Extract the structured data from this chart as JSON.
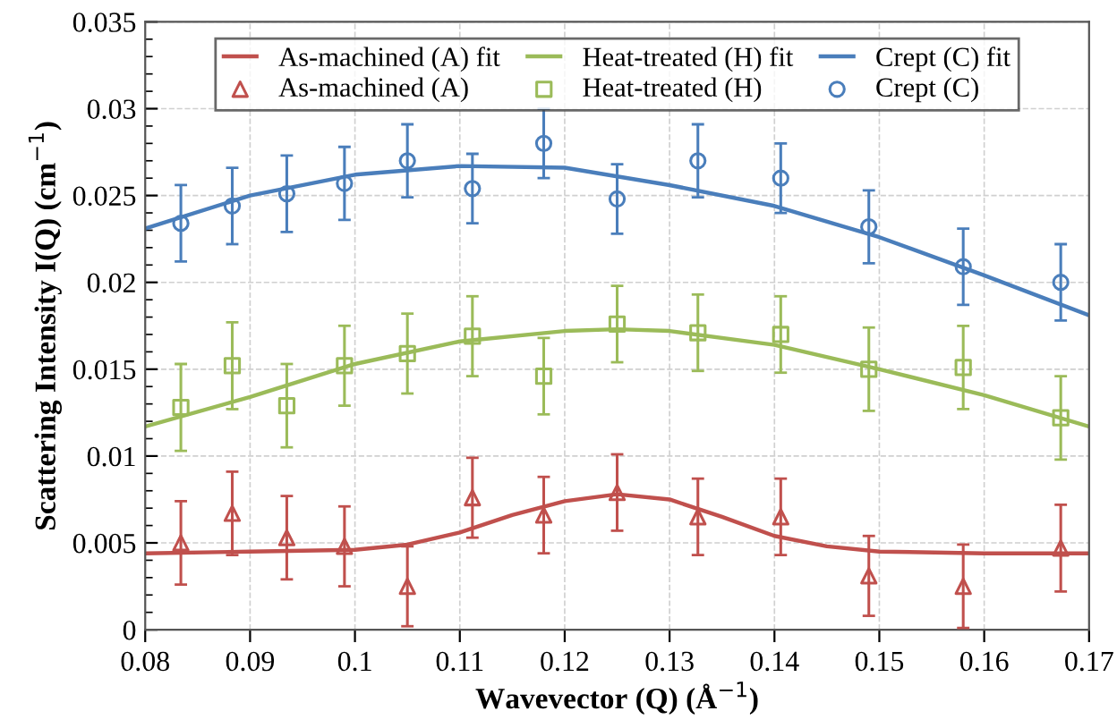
{
  "chart_data": {
    "type": "scatter",
    "xlabel": "Wavevector (Q) (Å$^{−1}$)",
    "ylabel": "Scattering Intensity I(Q) (cm$^{−1}$)",
    "xlim": [
      0.08,
      0.17
    ],
    "xticks": [
      0.08,
      0.09,
      0.1,
      0.11,
      0.12,
      0.13,
      0.14,
      0.15,
      0.16,
      0.17
    ],
    "ylim": [
      0,
      0.035
    ],
    "yticks": [
      0,
      0.005,
      0.01,
      0.015,
      0.02,
      0.025,
      0.03,
      0.035
    ],
    "grid": true,
    "legend": "top",
    "x": [
      0.0834,
      0.0883,
      0.0935,
      0.099,
      0.105,
      0.1112,
      0.118,
      0.125,
      0.1327,
      0.1406,
      0.149,
      0.158,
      0.1673
    ],
    "series": [
      {
        "name": "As-machined (A) fit",
        "type": "line",
        "marker": "none",
        "color": "#c0504d",
        "x": [
          0.08,
          0.09,
          0.1,
          0.105,
          0.11,
          0.115,
          0.12,
          0.125,
          0.13,
          0.135,
          0.14,
          0.145,
          0.15,
          0.16,
          0.17
        ],
        "values": [
          0.0044,
          0.0045,
          0.0046,
          0.0049,
          0.0056,
          0.0066,
          0.0074,
          0.0078,
          0.0075,
          0.0065,
          0.0054,
          0.0048,
          0.0045,
          0.0044,
          0.0044
        ]
      },
      {
        "name": "As-machined (A)",
        "marker": "triangle",
        "color": "#c0504d",
        "values": [
          0.005,
          0.0067,
          0.0053,
          0.0048,
          0.0025,
          0.0076,
          0.0066,
          0.0079,
          0.0065,
          0.0065,
          0.0031,
          0.0025,
          0.0047
        ],
        "errors": [
          0.0024,
          0.0024,
          0.0024,
          0.0023,
          0.0023,
          0.0023,
          0.0022,
          0.0022,
          0.0022,
          0.0022,
          0.0023,
          0.0024,
          0.0025
        ]
      },
      {
        "name": "Heat-treated (H) fit",
        "type": "line",
        "marker": "none",
        "color": "#9bbb59",
        "x": [
          0.08,
          0.09,
          0.1,
          0.11,
          0.12,
          0.125,
          0.13,
          0.14,
          0.15,
          0.16,
          0.17
        ],
        "values": [
          0.0117,
          0.0134,
          0.0153,
          0.0166,
          0.0172,
          0.0173,
          0.0172,
          0.0164,
          0.015,
          0.0135,
          0.0117
        ]
      },
      {
        "name": "Heat-treated (H)",
        "marker": "square",
        "color": "#9bbb59",
        "values": [
          0.0128,
          0.0152,
          0.0129,
          0.0152,
          0.0159,
          0.0169,
          0.0146,
          0.0176,
          0.0171,
          0.017,
          0.015,
          0.0151,
          0.0122
        ],
        "errors": [
          0.0025,
          0.0025,
          0.0024,
          0.0023,
          0.0023,
          0.0023,
          0.0022,
          0.0022,
          0.0022,
          0.0022,
          0.0024,
          0.0024,
          0.0024
        ]
      },
      {
        "name": "Crept (C) fit",
        "type": "line",
        "marker": "none",
        "color": "#4a7ebb",
        "x": [
          0.08,
          0.09,
          0.1,
          0.11,
          0.12,
          0.13,
          0.14,
          0.15,
          0.16,
          0.17
        ],
        "values": [
          0.0231,
          0.025,
          0.0262,
          0.0267,
          0.0266,
          0.0256,
          0.0244,
          0.0226,
          0.0204,
          0.0181
        ]
      },
      {
        "name": "Crept (C)",
        "marker": "circle",
        "color": "#4a7ebb",
        "values": [
          0.0234,
          0.0244,
          0.0251,
          0.0257,
          0.027,
          0.0254,
          0.028,
          0.0248,
          0.027,
          0.026,
          0.0232,
          0.0209,
          0.02
        ],
        "errors": [
          0.0022,
          0.0022,
          0.0022,
          0.0021,
          0.0021,
          0.002,
          0.002,
          0.002,
          0.0021,
          0.002,
          0.0021,
          0.0022,
          0.0022
        ]
      }
    ]
  }
}
